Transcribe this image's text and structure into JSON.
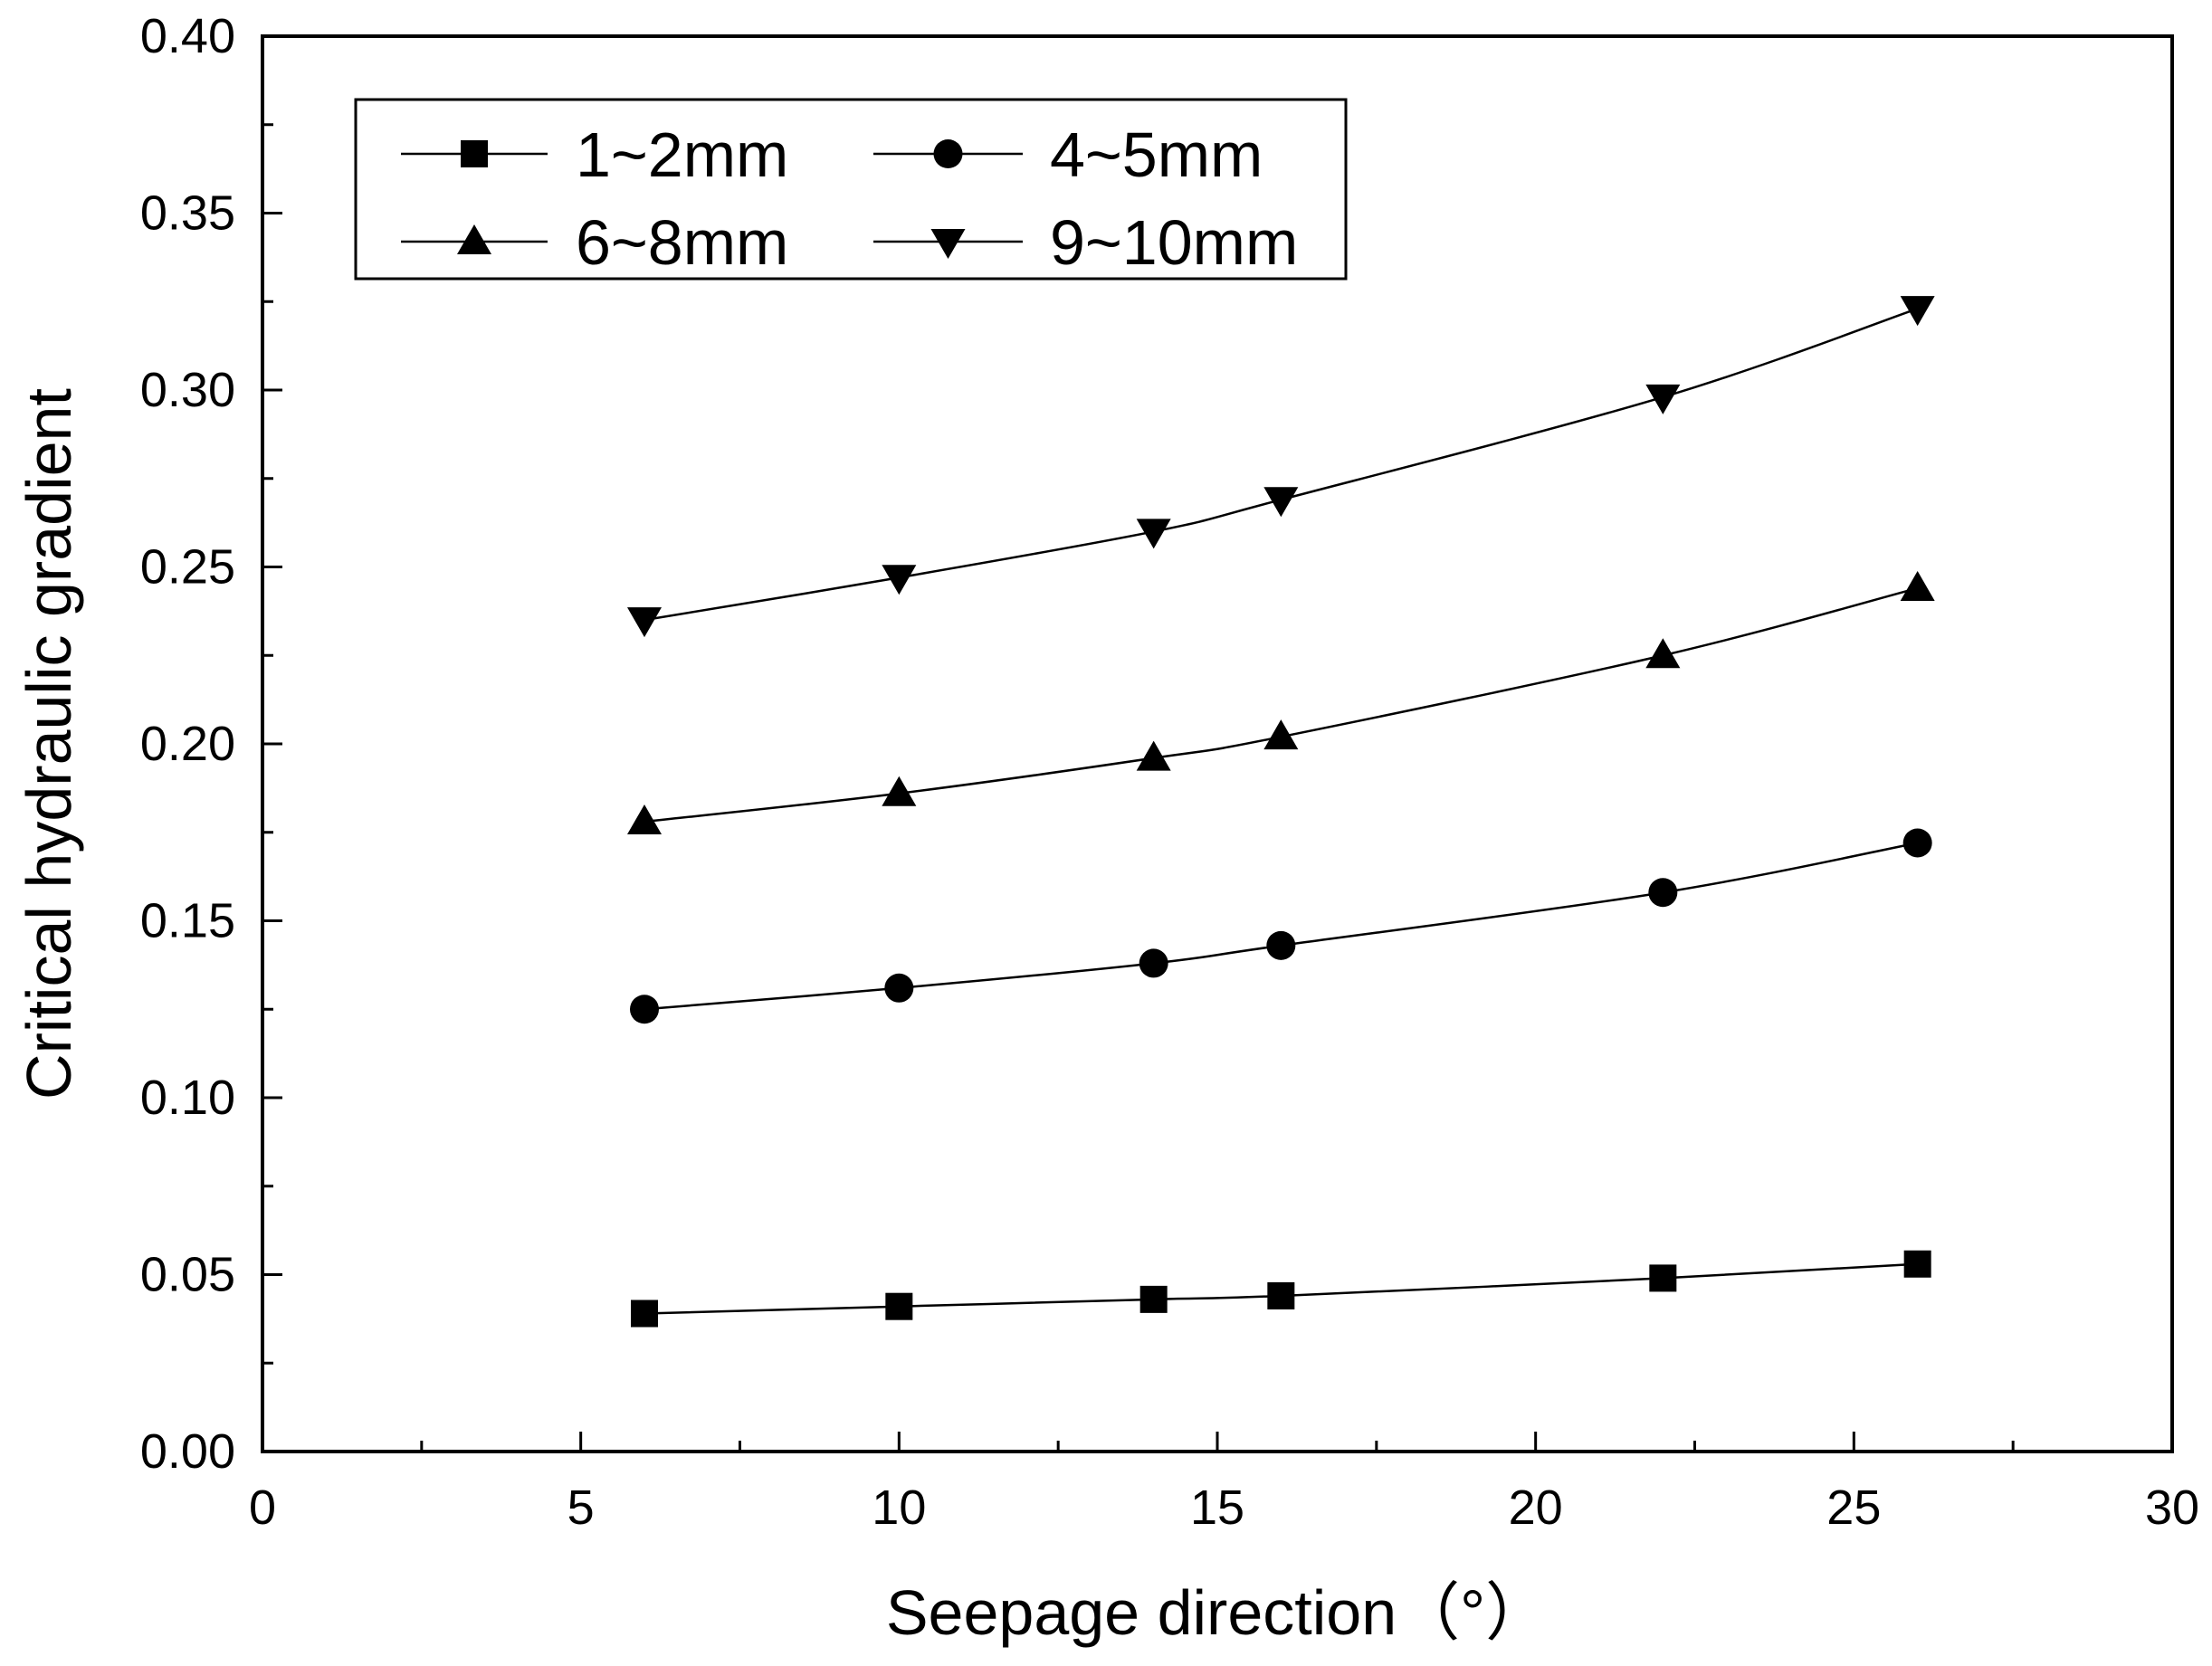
{
  "chart_data": {
    "type": "line",
    "title": "",
    "xlabel": "Seepage direction（°）",
    "ylabel": "Critical hydraulic gradient",
    "xlim": [
      0,
      30
    ],
    "ylim": [
      0,
      0.4
    ],
    "xticks": [
      0,
      5,
      10,
      15,
      20,
      25,
      30
    ],
    "xtick_labels": [
      "0",
      "5",
      "10",
      "15",
      "20",
      "25",
      "30"
    ],
    "yticks": [
      0,
      0.05,
      0.1,
      0.15,
      0.2,
      0.25,
      0.3,
      0.35,
      0.4
    ],
    "ytick_labels": [
      "0.00",
      "0.05",
      "0.10",
      "0.15",
      "0.20",
      "0.25",
      "0.30",
      "0.35",
      "0.40"
    ],
    "grid": false,
    "legend_position": "top-left",
    "x": [
      6,
      10,
      14,
      16,
      22,
      26
    ],
    "series": [
      {
        "name": "1~2mm",
        "marker": "square",
        "values": [
          0.039,
          0.041,
          0.043,
          0.044,
          0.049,
          0.053
        ]
      },
      {
        "name": "4~5mm",
        "marker": "circle",
        "values": [
          0.125,
          0.131,
          0.138,
          0.143,
          0.158,
          0.172
        ]
      },
      {
        "name": "6~8mm",
        "marker": "triangle-up",
        "values": [
          0.178,
          0.186,
          0.196,
          0.202,
          0.225,
          0.244
        ]
      },
      {
        "name": "9~10mm",
        "marker": "triangle-down",
        "values": [
          0.235,
          0.247,
          0.26,
          0.269,
          0.298,
          0.323
        ]
      }
    ]
  }
}
